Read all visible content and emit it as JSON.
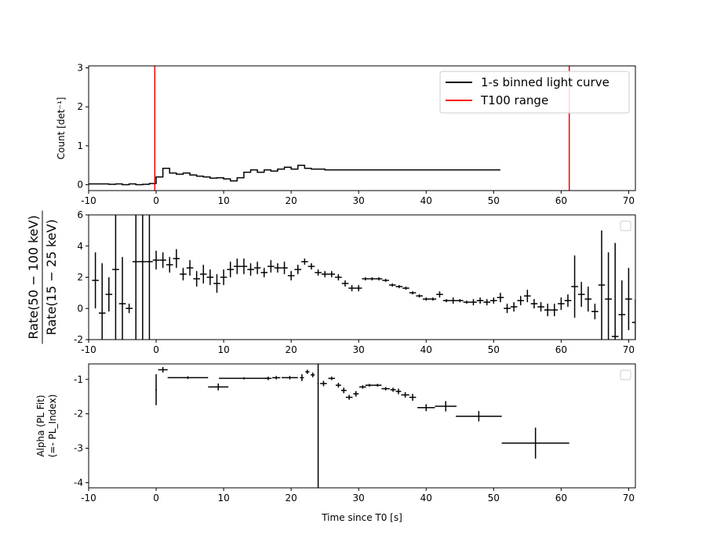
{
  "chart_data": [
    {
      "type": "line",
      "panel": "light-curve",
      "ylabel": "Count [det⁻¹]",
      "xlim": [
        -10,
        71
      ],
      "ylim": [
        -0.15,
        3.05
      ],
      "xticks": [
        -10,
        0,
        10,
        20,
        30,
        40,
        50,
        60,
        70
      ],
      "yticks": [
        0,
        1,
        2,
        3
      ],
      "legend": {
        "placement": "top-right",
        "entries": [
          "1-s binned light curve",
          "T100 range"
        ]
      },
      "vlines": [
        {
          "x": -0.2,
          "color": "#ff0000",
          "name": "T100 range"
        },
        {
          "x": 61.2,
          "color": "#ff0000",
          "name": "T100 range"
        }
      ],
      "series": [
        {
          "name": "1-s binned light curve",
          "color": "#000000",
          "step": true,
          "bin_edges_start": -10,
          "bin_width": 1,
          "values": [
            0.02,
            0.02,
            0.02,
            0.01,
            0.02,
            0.0,
            0.02,
            0.0,
            0.01,
            0.03,
            0.2,
            0.42,
            0.3,
            0.27,
            0.3,
            0.25,
            0.22,
            0.2,
            0.17,
            0.18,
            0.15,
            0.1,
            0.18,
            0.32,
            0.38,
            0.32,
            0.38,
            0.35,
            0.4,
            0.45,
            0.4,
            0.5,
            0.42,
            0.4,
            0.4,
            0.38,
            0.38,
            0.38,
            0.38,
            0.38,
            0.38,
            0.38,
            0.38,
            0.38,
            0.38,
            0.38,
            0.38,
            0.38,
            0.38,
            0.38,
            0.38,
            0.38,
            0.38,
            0.38,
            0.38,
            0.38,
            0.38,
            0.38,
            0.38,
            0.38,
            0.38
          ]
        }
      ]
    },
    {
      "type": "scatter",
      "panel": "hardness-ratio",
      "ylabel_num": "Rate(50 − 100 keV)",
      "ylabel_den": "Rate(15 − 25 keV)",
      "xlim": [
        -10,
        71
      ],
      "ylim": [
        -2,
        6
      ],
      "xticks": [
        -10,
        0,
        10,
        20,
        30,
        40,
        50,
        60,
        70
      ],
      "yticks": [
        -2,
        0,
        2,
        4,
        6
      ],
      "legend": {
        "placement": "top-right",
        "entries": []
      },
      "points": [
        {
          "x": -9,
          "y": 1.8,
          "yerr": 1.8
        },
        {
          "x": -8,
          "y": -0.3,
          "yerr": 3.2
        },
        {
          "x": -7,
          "y": 0.9,
          "yerr": 1.1
        },
        {
          "x": -6,
          "y": 2.5,
          "yerr": 5.0
        },
        {
          "x": -5,
          "y": 0.3,
          "yerr": 3.0
        },
        {
          "x": -4,
          "y": 0.0,
          "yerr": 0.3
        },
        {
          "x": -3,
          "y": 3.0,
          "yerr": 6.0
        },
        {
          "x": -2,
          "y": 3.0,
          "yerr": 6.0
        },
        {
          "x": -1,
          "y": 3.0,
          "yerr": 6.0
        },
        {
          "x": 0,
          "y": 3.1,
          "yerr": 0.6
        },
        {
          "x": 1,
          "y": 3.1,
          "yerr": 0.5
        },
        {
          "x": 2,
          "y": 2.8,
          "yerr": 0.5
        },
        {
          "x": 3,
          "y": 3.2,
          "yerr": 0.6
        },
        {
          "x": 4,
          "y": 2.2,
          "yerr": 0.4
        },
        {
          "x": 5,
          "y": 2.6,
          "yerr": 0.5
        },
        {
          "x": 6,
          "y": 1.9,
          "yerr": 0.5
        },
        {
          "x": 7,
          "y": 2.2,
          "yerr": 0.6
        },
        {
          "x": 8,
          "y": 2.0,
          "yerr": 0.5
        },
        {
          "x": 9,
          "y": 1.6,
          "yerr": 0.6
        },
        {
          "x": 10,
          "y": 2.0,
          "yerr": 0.5
        },
        {
          "x": 11,
          "y": 2.5,
          "yerr": 0.5
        },
        {
          "x": 12,
          "y": 2.7,
          "yerr": 0.5
        },
        {
          "x": 13,
          "y": 2.7,
          "yerr": 0.5
        },
        {
          "x": 14,
          "y": 2.5,
          "yerr": 0.4
        },
        {
          "x": 15,
          "y": 2.6,
          "yerr": 0.4
        },
        {
          "x": 16,
          "y": 2.3,
          "yerr": 0.3
        },
        {
          "x": 17,
          "y": 2.7,
          "yerr": 0.4
        },
        {
          "x": 18,
          "y": 2.6,
          "yerr": 0.3
        },
        {
          "x": 19,
          "y": 2.6,
          "yerr": 0.4
        },
        {
          "x": 20,
          "y": 2.1,
          "yerr": 0.3
        },
        {
          "x": 21,
          "y": 2.5,
          "yerr": 0.3
        },
        {
          "x": 22,
          "y": 3.0,
          "yerr": 0.2
        },
        {
          "x": 23,
          "y": 2.7,
          "yerr": 0.2
        },
        {
          "x": 24,
          "y": 2.3,
          "yerr": 0.2
        },
        {
          "x": 25,
          "y": 2.2,
          "yerr": 0.2
        },
        {
          "x": 26,
          "y": 2.2,
          "yerr": 0.2
        },
        {
          "x": 27,
          "y": 2.0,
          "yerr": 0.2
        },
        {
          "x": 28,
          "y": 1.6,
          "yerr": 0.2
        },
        {
          "x": 29,
          "y": 1.3,
          "yerr": 0.2
        },
        {
          "x": 30,
          "y": 1.3,
          "yerr": 0.2
        },
        {
          "x": 31,
          "y": 1.9,
          "yerr": 0.1
        },
        {
          "x": 32,
          "y": 1.9,
          "yerr": 0.1
        },
        {
          "x": 33,
          "y": 1.9,
          "yerr": 0.1
        },
        {
          "x": 34,
          "y": 1.8,
          "yerr": 0.1
        },
        {
          "x": 35,
          "y": 1.5,
          "yerr": 0.1
        },
        {
          "x": 36,
          "y": 1.4,
          "yerr": 0.1
        },
        {
          "x": 37,
          "y": 1.3,
          "yerr": 0.1
        },
        {
          "x": 38,
          "y": 1.0,
          "yerr": 0.1
        },
        {
          "x": 39,
          "y": 0.8,
          "yerr": 0.1
        },
        {
          "x": 40,
          "y": 0.6,
          "yerr": 0.1
        },
        {
          "x": 41,
          "y": 0.6,
          "yerr": 0.1
        },
        {
          "x": 42,
          "y": 0.9,
          "yerr": 0.2
        },
        {
          "x": 43,
          "y": 0.5,
          "yerr": 0.1
        },
        {
          "x": 44,
          "y": 0.5,
          "yerr": 0.2
        },
        {
          "x": 45,
          "y": 0.5,
          "yerr": 0.1
        },
        {
          "x": 46,
          "y": 0.4,
          "yerr": 0.1
        },
        {
          "x": 47,
          "y": 0.4,
          "yerr": 0.2
        },
        {
          "x": 48,
          "y": 0.5,
          "yerr": 0.2
        },
        {
          "x": 49,
          "y": 0.4,
          "yerr": 0.2
        },
        {
          "x": 50,
          "y": 0.5,
          "yerr": 0.2
        },
        {
          "x": 51,
          "y": 0.7,
          "yerr": 0.3
        },
        {
          "x": 52,
          "y": 0.0,
          "yerr": 0.3
        },
        {
          "x": 53,
          "y": 0.1,
          "yerr": 0.3
        },
        {
          "x": 54,
          "y": 0.5,
          "yerr": 0.3
        },
        {
          "x": 55,
          "y": 0.8,
          "yerr": 0.4
        },
        {
          "x": 56,
          "y": 0.3,
          "yerr": 0.3
        },
        {
          "x": 57,
          "y": 0.1,
          "yerr": 0.3
        },
        {
          "x": 58,
          "y": -0.1,
          "yerr": 0.4
        },
        {
          "x": 59,
          "y": -0.1,
          "yerr": 0.4
        },
        {
          "x": 60,
          "y": 0.3,
          "yerr": 0.4
        },
        {
          "x": 61,
          "y": 0.5,
          "yerr": 0.4
        },
        {
          "x": 62,
          "y": 1.4,
          "yerr": 2.0
        },
        {
          "x": 63,
          "y": 0.9,
          "yerr": 0.8
        },
        {
          "x": 64,
          "y": 0.6,
          "yerr": 0.8
        },
        {
          "x": 65,
          "y": -0.2,
          "yerr": 0.5
        },
        {
          "x": 66,
          "y": 1.5,
          "yerr": 3.5
        },
        {
          "x": 67,
          "y": 0.6,
          "yerr": 3.0
        },
        {
          "x": 68,
          "y": -1.8,
          "yerr": 6.0
        },
        {
          "x": 69,
          "y": -0.4,
          "yerr": 2.2
        },
        {
          "x": 70,
          "y": 0.6,
          "yerr": 2.0
        },
        {
          "x": 71,
          "y": -0.9,
          "yerr": 1.5
        }
      ]
    },
    {
      "type": "scatter",
      "panel": "alpha",
      "xlabel": "Time since T0 [s]",
      "ylabel": "Alpha (PL Fit)",
      "ylabel2": "(=- PL_Index)",
      "xlim": [
        -10,
        71
      ],
      "ylim": [
        -4.15,
        -0.55
      ],
      "xticks": [
        -10,
        0,
        10,
        20,
        30,
        40,
        50,
        60,
        70
      ],
      "yticks": [
        -4,
        -3,
        -2,
        -1
      ],
      "legend": {
        "placement": "top-right",
        "entries": []
      },
      "points": [
        {
          "x": 0.0,
          "xerr": 0.1,
          "y": -1.3,
          "yerr": 0.45
        },
        {
          "x": 1.0,
          "xerr": 0.7,
          "y": -0.72,
          "yerr": 0.08
        },
        {
          "x": 4.7,
          "xerr": 3.0,
          "y": -0.95,
          "yerr": 0.04
        },
        {
          "x": 9.2,
          "xerr": 1.5,
          "y": -1.22,
          "yerr": 0.1
        },
        {
          "x": 13.0,
          "xerr": 3.7,
          "y": -0.97,
          "yerr": 0.03
        },
        {
          "x": 16.6,
          "xerr": 0.5,
          "y": -0.97,
          "yerr": 0.05
        },
        {
          "x": 17.8,
          "xerr": 0.6,
          "y": -0.95,
          "yerr": 0.05
        },
        {
          "x": 19.8,
          "xerr": 1.2,
          "y": -0.95,
          "yerr": 0.05
        },
        {
          "x": 21.6,
          "xerr": 0.3,
          "y": -0.95,
          "yerr": 0.1
        },
        {
          "x": 22.4,
          "xerr": 0.3,
          "y": -0.78,
          "yerr": 0.06
        },
        {
          "x": 23.2,
          "xerr": 0.3,
          "y": -0.87,
          "yerr": 0.07
        },
        {
          "x": 24.0,
          "xerr": 0.1,
          "y": -1.12,
          "yerr": 3.2
        },
        {
          "x": 24.8,
          "xerr": 0.5,
          "y": -1.12,
          "yerr": 0.08
        },
        {
          "x": 26.0,
          "xerr": 0.5,
          "y": -0.97,
          "yerr": 0.05
        },
        {
          "x": 27.0,
          "xerr": 0.4,
          "y": -1.17,
          "yerr": 0.07
        },
        {
          "x": 27.8,
          "xerr": 0.4,
          "y": -1.32,
          "yerr": 0.08
        },
        {
          "x": 28.6,
          "xerr": 0.5,
          "y": -1.52,
          "yerr": 0.07
        },
        {
          "x": 29.6,
          "xerr": 0.4,
          "y": -1.42,
          "yerr": 0.08
        },
        {
          "x": 30.6,
          "xerr": 0.5,
          "y": -1.22,
          "yerr": 0.05
        },
        {
          "x": 31.6,
          "xerr": 0.6,
          "y": -1.17,
          "yerr": 0.04
        },
        {
          "x": 32.8,
          "xerr": 0.6,
          "y": -1.17,
          "yerr": 0.04
        },
        {
          "x": 34.0,
          "xerr": 0.6,
          "y": -1.27,
          "yerr": 0.05
        },
        {
          "x": 35.1,
          "xerr": 0.4,
          "y": -1.3,
          "yerr": 0.06
        },
        {
          "x": 35.9,
          "xerr": 0.4,
          "y": -1.35,
          "yerr": 0.08
        },
        {
          "x": 36.9,
          "xerr": 0.6,
          "y": -1.45,
          "yerr": 0.08
        },
        {
          "x": 38.0,
          "xerr": 0.5,
          "y": -1.52,
          "yerr": 0.1
        },
        {
          "x": 40.0,
          "xerr": 1.3,
          "y": -1.82,
          "yerr": 0.1
        },
        {
          "x": 42.9,
          "xerr": 1.6,
          "y": -1.78,
          "yerr": 0.15
        },
        {
          "x": 47.8,
          "xerr": 3.4,
          "y": -2.07,
          "yerr": 0.15
        },
        {
          "x": 56.2,
          "xerr": 5.0,
          "y": -2.85,
          "yerr": 0.45
        }
      ]
    }
  ]
}
